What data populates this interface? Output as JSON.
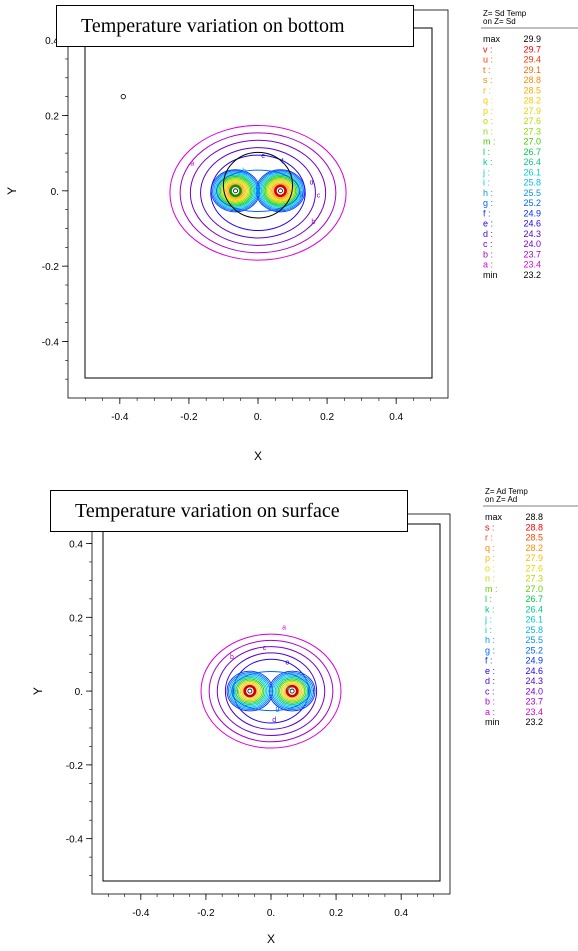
{
  "chart_data": [
    {
      "type": "contour",
      "title": "Temperature variation on bottom",
      "xlabel": "X",
      "ylabel": "Y",
      "xlim": [
        -0.55,
        0.55
      ],
      "ylim": [
        -0.55,
        0.48
      ],
      "xticks": [
        "-0.4",
        "-0.2",
        "0.",
        "0.2",
        "0.4"
      ],
      "yticks": [
        "0.4",
        "0.2",
        "0.",
        "-0.2",
        "-0.4"
      ],
      "xtick_values": [
        -0.4,
        -0.2,
        0,
        0.2,
        0.4
      ],
      "ytick_values": [
        0.4,
        0.2,
        0,
        -0.2,
        -0.4
      ],
      "legend_header": [
        "Z= Sd  Temp",
        "on  Z= Sd"
      ],
      "legend": [
        {
          "label": "max",
          "value": "29.9",
          "color": "#000000"
        },
        {
          "label": "v :",
          "value": "29.7",
          "color": "#ff0000"
        },
        {
          "label": "u :",
          "value": "29.4",
          "color": "#ff3300"
        },
        {
          "label": "t :",
          "value": "29.1",
          "color": "#ff6600"
        },
        {
          "label": "s :",
          "value": "28.8",
          "color": "#ff8800"
        },
        {
          "label": "r :",
          "value": "28.5",
          "color": "#ffaa00"
        },
        {
          "label": "q :",
          "value": "28.2",
          "color": "#ffc800"
        },
        {
          "label": "p :",
          "value": "27.9",
          "color": "#e6d600"
        },
        {
          "label": "o :",
          "value": "27.6",
          "color": "#b8dc00"
        },
        {
          "label": "n :",
          "value": "27.3",
          "color": "#88dd00"
        },
        {
          "label": "m :",
          "value": "27.0",
          "color": "#44cc00"
        },
        {
          "label": "l :",
          "value": "26.7",
          "color": "#00cc44"
        },
        {
          "label": "k :",
          "value": "26.4",
          "color": "#00cc88"
        },
        {
          "label": "j :",
          "value": "26.1",
          "color": "#00cccc"
        },
        {
          "label": "i :",
          "value": "25.8",
          "color": "#00bbee"
        },
        {
          "label": "h :",
          "value": "25.5",
          "color": "#0099ee"
        },
        {
          "label": "g :",
          "value": "25.2",
          "color": "#0066ff"
        },
        {
          "label": "f :",
          "value": "24.9",
          "color": "#0033ff"
        },
        {
          "label": "e :",
          "value": "24.6",
          "color": "#2200ee"
        },
        {
          "label": "d :",
          "value": "24.3",
          "color": "#5500cc"
        },
        {
          "label": "c :",
          "value": "24.0",
          "color": "#7700cc"
        },
        {
          "label": "b :",
          "value": "23.7",
          "color": "#aa00cc"
        },
        {
          "label": "a :",
          "value": "23.4",
          "color": "#dd00dd"
        },
        {
          "label": "min",
          "value": "23.2",
          "color": "#000000"
        }
      ],
      "heat_sources": [
        {
          "x": -0.065,
          "y": 0.0,
          "ring_color": "#009900"
        },
        {
          "x": 0.065,
          "y": 0.0,
          "ring_color": "#cc0000"
        }
      ],
      "marker": {
        "x": -0.39,
        "y": 0.25
      },
      "black_loop": {
        "cx": 0.0,
        "cy": 0.015,
        "rx": 0.1,
        "ry": 0.095
      },
      "contour_labels": [
        {
          "text": "a",
          "x": -0.19,
          "y": 0.075,
          "level": "a"
        },
        {
          "text": "b",
          "x": 0.16,
          "y": -0.08,
          "level": "b"
        },
        {
          "text": "c",
          "x": 0.175,
          "y": -0.01,
          "level": "c"
        },
        {
          "text": "d",
          "x": 0.155,
          "y": 0.025,
          "level": "d"
        },
        {
          "text": "e",
          "x": 0.015,
          "y": 0.095,
          "level": "e"
        },
        {
          "text": "f",
          "x": 0.07,
          "y": 0.08,
          "level": "f"
        },
        {
          "text": "g",
          "x": 0.125,
          "y": -0.005,
          "level": "g"
        },
        {
          "text": "h",
          "x": -0.04,
          "y": 0.055,
          "level": "h"
        },
        {
          "text": "n",
          "x": 0.055,
          "y": 0.04,
          "level": "n"
        }
      ]
    },
    {
      "type": "contour",
      "title": "Temperature variation on surface",
      "xlabel": "X",
      "ylabel": "Y",
      "xlim": [
        -0.55,
        0.55
      ],
      "ylim": [
        -0.55,
        0.48
      ],
      "xticks": [
        "-0.4",
        "-0.2",
        "0.",
        "0.2",
        "0.4"
      ],
      "yticks": [
        "0.4",
        "0.2",
        "0.",
        "-0.2",
        "-0.4"
      ],
      "xtick_values": [
        -0.4,
        -0.2,
        0,
        0.2,
        0.4
      ],
      "ytick_values": [
        0.4,
        0.2,
        0,
        -0.2,
        -0.4
      ],
      "legend_header": [
        "Z= Ad  Temp",
        "on  Z= Ad"
      ],
      "legend": [
        {
          "label": "max",
          "value": "28.8",
          "color": "#000000"
        },
        {
          "label": "s :",
          "value": "28.8",
          "color": "#ff0000"
        },
        {
          "label": "r :",
          "value": "28.5",
          "color": "#ff4400"
        },
        {
          "label": "q :",
          "value": "28.2",
          "color": "#ff8800"
        },
        {
          "label": "p :",
          "value": "27.9",
          "color": "#ffbb00"
        },
        {
          "label": "o :",
          "value": "27.6",
          "color": "#e6d600"
        },
        {
          "label": "n :",
          "value": "27.3",
          "color": "#b8dc00"
        },
        {
          "label": "m :",
          "value": "27.0",
          "color": "#66cc00"
        },
        {
          "label": "l :",
          "value": "26.7",
          "color": "#00cc44"
        },
        {
          "label": "k :",
          "value": "26.4",
          "color": "#00cc88"
        },
        {
          "label": "j :",
          "value": "26.1",
          "color": "#00cccc"
        },
        {
          "label": "i :",
          "value": "25.8",
          "color": "#00bbee"
        },
        {
          "label": "h :",
          "value": "25.5",
          "color": "#0099ee"
        },
        {
          "label": "g :",
          "value": "25.2",
          "color": "#0066ff"
        },
        {
          "label": "f :",
          "value": "24.9",
          "color": "#0033ff"
        },
        {
          "label": "e :",
          "value": "24.6",
          "color": "#2200ee"
        },
        {
          "label": "d :",
          "value": "24.3",
          "color": "#5500cc"
        },
        {
          "label": "c :",
          "value": "24.0",
          "color": "#7700cc"
        },
        {
          "label": "b :",
          "value": "23.7",
          "color": "#aa00cc"
        },
        {
          "label": "a :",
          "value": "23.4",
          "color": "#dd00dd"
        },
        {
          "label": "min",
          "value": "23.2",
          "color": "#000000"
        }
      ],
      "heat_sources": [
        {
          "x": -0.065,
          "y": 0.0,
          "ring_color": "#cc0000"
        },
        {
          "x": 0.065,
          "y": 0.0,
          "ring_color": "#cc0000"
        }
      ],
      "contour_labels": [
        {
          "text": "a",
          "x": 0.04,
          "y": 0.175,
          "level": "a"
        },
        {
          "text": "b",
          "x": -0.12,
          "y": 0.095,
          "level": "b"
        },
        {
          "text": "c",
          "x": -0.02,
          "y": 0.12,
          "level": "c"
        },
        {
          "text": "e",
          "x": 0.05,
          "y": 0.08,
          "level": "e"
        },
        {
          "text": "g",
          "x": 0.02,
          "y": -0.045,
          "level": "g"
        },
        {
          "text": "d",
          "x": 0.01,
          "y": -0.075,
          "level": "d"
        },
        {
          "text": "h",
          "x": -0.105,
          "y": 0.0,
          "level": "h"
        },
        {
          "text": "f",
          "x": 0.13,
          "y": 0.0,
          "level": "f"
        },
        {
          "text": "k",
          "x": 0.055,
          "y": 0.01,
          "level": "k"
        }
      ]
    }
  ]
}
